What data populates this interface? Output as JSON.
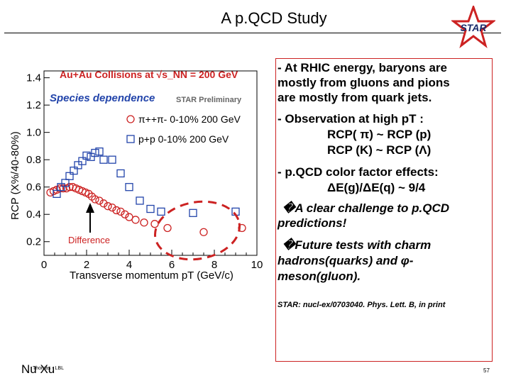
{
  "title": "A p.QCD Study",
  "logo": {
    "text": "STAR",
    "star_color": "#cc2222"
  },
  "figure": {
    "header": "Au+Au Collisions at √s_NN = 200 GeV",
    "subtitle": "Species dependence",
    "preliminary": "STAR Preliminary",
    "legend": [
      "π++π- 0-10% 200 GeV",
      "p+p 0-10% 200 GeV"
    ],
    "annotation": "Difference",
    "xlabel": "Transverse momentum pT (GeV/c)",
    "ylabel": "RCP (X%/40-80%)"
  },
  "chart_data": {
    "type": "scatter",
    "title": "Au+Au Collisions at √s_NN = 200 GeV",
    "xlabel": "Transverse momentum pT (GeV/c)",
    "ylabel": "RCP (X%/40-80%)",
    "xlim": [
      0,
      10
    ],
    "ylim": [
      0.1,
      1.45
    ],
    "x_ticks": [
      "0",
      "2",
      "4",
      "6",
      "8",
      "10"
    ],
    "y_ticks": [
      "0.2",
      "0.4",
      "0.6",
      "0.8",
      "1.0",
      "1.2",
      "1.4"
    ],
    "series": [
      {
        "name": "π++π- 0-10% 200 GeV",
        "marker": "open-circle",
        "color": "#cc2222",
        "x": [
          0.3,
          0.45,
          0.6,
          0.75,
          0.9,
          1.05,
          1.2,
          1.35,
          1.5,
          1.65,
          1.8,
          1.95,
          2.1,
          2.25,
          2.4,
          2.6,
          2.8,
          3.0,
          3.2,
          3.4,
          3.6,
          3.8,
          4.0,
          4.3,
          4.7,
          5.2,
          5.8,
          7.5,
          9.3
        ],
        "y": [
          0.56,
          0.57,
          0.58,
          0.59,
          0.59,
          0.59,
          0.6,
          0.6,
          0.59,
          0.58,
          0.57,
          0.56,
          0.55,
          0.53,
          0.51,
          0.5,
          0.48,
          0.46,
          0.45,
          0.43,
          0.42,
          0.4,
          0.38,
          0.36,
          0.34,
          0.33,
          0.3,
          0.27,
          0.3
        ]
      },
      {
        "name": "p+p 0-10% 200 GeV",
        "marker": "open-square",
        "color": "#2244aa",
        "x": [
          0.6,
          0.8,
          1.0,
          1.2,
          1.4,
          1.6,
          1.8,
          2.0,
          2.2,
          2.4,
          2.6,
          2.8,
          3.2,
          3.6,
          4.0,
          4.5,
          5.0,
          5.5,
          7.0,
          9.0
        ],
        "y": [
          0.55,
          0.6,
          0.63,
          0.68,
          0.72,
          0.76,
          0.79,
          0.83,
          0.82,
          0.85,
          0.86,
          0.8,
          0.8,
          0.7,
          0.6,
          0.5,
          0.44,
          0.42,
          0.41,
          0.42
        ]
      }
    ]
  },
  "bullets": {
    "b1": [
      "- At RHIC energy, baryons are",
      "mostly from gluons and pions",
      "are mostly from quark jets."
    ],
    "b2_line1": "- Observation at high pT :",
    "b2_line2": "RCP( π) ~ RCP (p)",
    "b2_line3": "RCP (K) ~ RCP (Λ)",
    "b3_line1": "- p.QCD color factor effects:",
    "b3_line2": "ΔE(g)/ΔE(q) ~ 9/4",
    "c1": [
      "�A clear challenge to p.QCD",
      "predictions!"
    ],
    "c2": [
      "�Future tests with charm",
      "hadrons(quarks) and φ-",
      "meson(gluon)."
    ],
    "ref": "STAR: nucl-ex/0703040. Phys. Lett. B, in print"
  },
  "footer": {
    "left": "Nu Xu",
    "small": "Thomas - LBL",
    "page": "57"
  }
}
